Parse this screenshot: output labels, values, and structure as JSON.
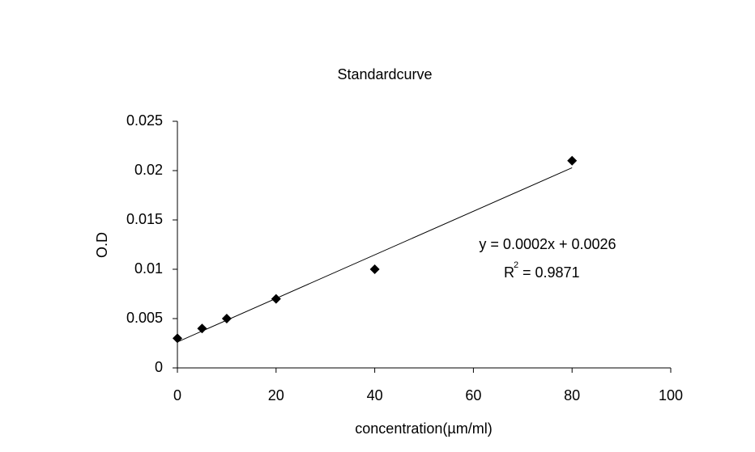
{
  "chart_data": {
    "type": "scatter",
    "title": "Standardcurve",
    "x_label": "concentration(µm/ml)",
    "y_label": "O.D",
    "x": [
      0,
      5,
      10,
      20,
      40,
      80
    ],
    "y": [
      0.003,
      0.004,
      0.005,
      0.007,
      0.01,
      0.021
    ],
    "color": "#000000",
    "xlim": [
      0,
      100
    ],
    "xticks": [
      0,
      20,
      40,
      60,
      80,
      100
    ],
    "ylim": [
      0,
      0.025
    ],
    "yticks": [
      0,
      0.005,
      0.01,
      0.015,
      0.02,
      0.025
    ],
    "grid": false,
    "trendline": "linear",
    "trendline_label": {
      "equation": "y = 0.0002x + 0.0026",
      "r": "R",
      "r_exponent": "2",
      "r_value": "= 0.9871"
    }
  }
}
